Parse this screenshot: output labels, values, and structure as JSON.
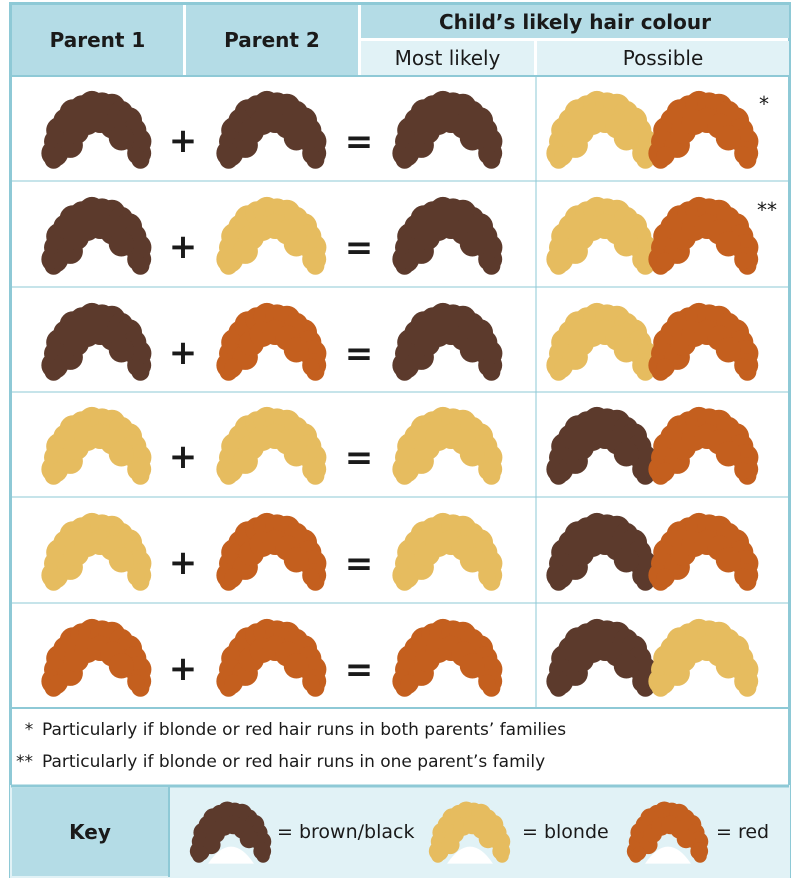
{
  "header": {
    "parent1": "Parent 1",
    "parent2": "Parent 2",
    "child": "Child’s likely hair colour",
    "most_likely": "Most likely",
    "possible": "Possible"
  },
  "colors": {
    "brown": "#5c3a2c",
    "blonde": "#e6bc5f",
    "red": "#c45f1e",
    "border": "#8ec9d6",
    "header_bg": "#b4dce6",
    "subheader_bg": "#e1f2f6"
  },
  "symbols": {
    "plus": "+",
    "equals": "="
  },
  "rows": [
    {
      "p1": "brown",
      "p2": "brown",
      "likely": "brown",
      "possible": [
        "blonde",
        "red"
      ],
      "note": "*"
    },
    {
      "p1": "brown",
      "p2": "blonde",
      "likely": "brown",
      "possible": [
        "blonde",
        "red"
      ],
      "note": "**"
    },
    {
      "p1": "brown",
      "p2": "red",
      "likely": "brown",
      "possible": [
        "blonde",
        "red"
      ],
      "note": ""
    },
    {
      "p1": "blonde",
      "p2": "blonde",
      "likely": "blonde",
      "possible": [
        "brown",
        "red"
      ],
      "note": ""
    },
    {
      "p1": "blonde",
      "p2": "red",
      "likely": "blonde",
      "possible": [
        "brown",
        "red"
      ],
      "note": ""
    },
    {
      "p1": "red",
      "p2": "red",
      "likely": "red",
      "possible": [
        "brown",
        "blonde"
      ],
      "note": ""
    }
  ],
  "footnotes": [
    {
      "mark": "*",
      "text": "Particularly if blonde or red hair runs in both parents’ families"
    },
    {
      "mark": "**",
      "text": "Particularly if blonde or red hair runs in one parent’s family"
    }
  ],
  "key": {
    "title": "Key",
    "items": [
      {
        "color": "brown",
        "label": "= brown/black"
      },
      {
        "color": "blonde",
        "label": "= blonde"
      },
      {
        "color": "red",
        "label": "= red"
      }
    ]
  }
}
